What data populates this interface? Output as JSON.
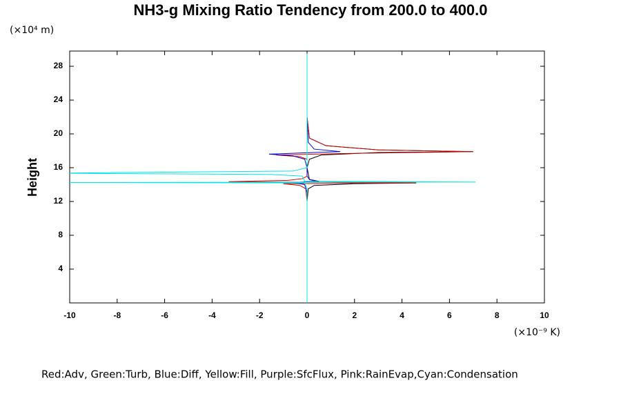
{
  "chart_data": {
    "type": "line",
    "title": "NH3-g Mixing Ratio Tendency from 200.0 to 400.0",
    "ylabel": "Height",
    "y_unit": "(×10⁴ m)",
    "x_unit": "(×10⁻⁹ K)",
    "note": "Red:Adv, Green:Turb, Blue:Diff, Yellow:Fill, Purple:SfcFlux, Pink:RainEvap,Cyan:Condensation",
    "xlim": [
      -10,
      10
    ],
    "ylim": [
      0,
      29.8
    ],
    "xticks": [
      -10,
      -8,
      -6,
      -4,
      -2,
      0,
      2,
      4,
      6,
      8,
      10
    ],
    "yticks": [
      4,
      8,
      12,
      16,
      20,
      24,
      28
    ],
    "series": [
      {
        "color": "#000000",
        "x": [
          0,
          0,
          0.05,
          0.3,
          2,
          4.6,
          0.5,
          0.1,
          0,
          0.1,
          0.6,
          3,
          7,
          3,
          0.8,
          0.1,
          0,
          0
        ],
        "values": [
          0,
          12,
          13.5,
          13.9,
          14.1,
          14.2,
          14.3,
          14.6,
          16,
          17,
          17.5,
          17.8,
          17.9,
          18.1,
          18.6,
          19.5,
          22,
          29.5
        ]
      },
      {
        "color": "#cc0000",
        "x": [
          0,
          0,
          -0.05,
          -0.3,
          -1,
          4.5,
          -3.3,
          -0.8,
          -0.2,
          0,
          0,
          0,
          -0.3,
          -1.3,
          2,
          7,
          3,
          0.8,
          0.1,
          0,
          0
        ],
        "values": [
          0,
          12,
          13.5,
          13.9,
          14.1,
          14.2,
          14.35,
          14.5,
          14.7,
          15,
          16,
          17,
          17.3,
          17.5,
          17.7,
          17.9,
          18.1,
          18.6,
          19.5,
          22,
          29.5
        ]
      },
      {
        "color": "#0000cc",
        "x": [
          0,
          0,
          -0.1,
          -0.6,
          0.5,
          0.1,
          0,
          0,
          -0.1,
          -0.6,
          -1.6,
          0.3,
          1.4,
          0.3,
          0.05,
          0,
          0
        ],
        "values": [
          0,
          13,
          14,
          14.25,
          14.4,
          14.6,
          15,
          16,
          17,
          17.4,
          17.6,
          17.8,
          17.9,
          18.2,
          19,
          22,
          29.5
        ]
      },
      {
        "color": "#00e5e5",
        "x": [
          0,
          0,
          -0.1,
          -11,
          7.1,
          -0.1,
          -0.2,
          -1.5,
          -11,
          -0.6,
          0,
          0
        ],
        "values": [
          0,
          13.5,
          14.2,
          14.25,
          14.3,
          14.4,
          15,
          15.2,
          15.35,
          15.6,
          16,
          29.5
        ]
      }
    ]
  }
}
